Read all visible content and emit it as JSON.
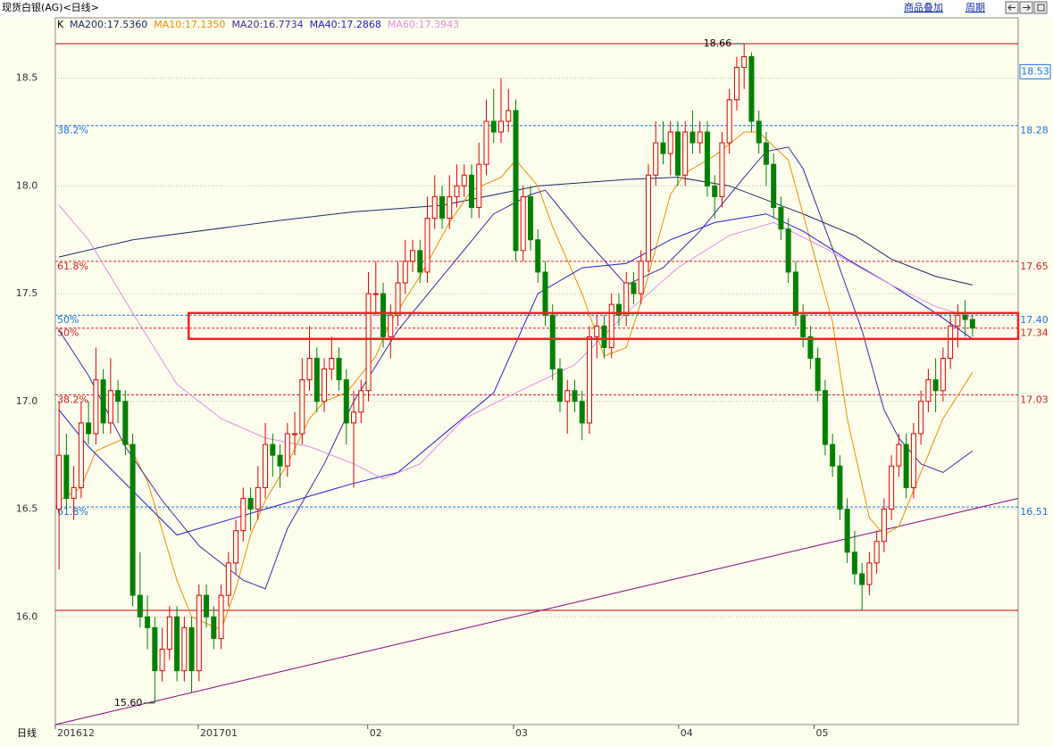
{
  "header": {
    "title": "现货白银(AG)<日线>",
    "buttons": [
      "商品叠加",
      "周期"
    ]
  },
  "chart_data": {
    "type": "candlestick",
    "legend_prefix": "K",
    "footer_label": "日线",
    "up_color": "#e00000",
    "down_color": "#008000",
    "ylim": [
      15.5,
      18.78
    ],
    "yticks": [
      16.5,
      17.5,
      18.5,
      {
        "value": 16,
        "label": "16.0"
      },
      {
        "value": 17,
        "label": "17.0"
      },
      {
        "value": 18,
        "label": "18.0"
      }
    ],
    "xlim": [
      -0.5,
      130.2
    ],
    "xticks": [
      {
        "value": -0.5,
        "label": "201612"
      },
      {
        "value": 18.9,
        "label": "201701"
      },
      {
        "value": 41.9,
        "label": "02"
      },
      {
        "value": 61.7,
        "label": "03"
      },
      {
        "value": 84.1,
        "label": "04"
      },
      {
        "value": 102.5,
        "label": "05"
      }
    ],
    "candles": [
      [
        16.5,
        17,
        16.22,
        16.75
      ],
      [
        16.75,
        16.85,
        16.5,
        16.55
      ],
      [
        16.55,
        16.7,
        16.45,
        16.6
      ],
      [
        16.6,
        17,
        16.55,
        16.9
      ],
      [
        16.9,
        17,
        16.8,
        16.85
      ],
      [
        16.85,
        17.25,
        16.8,
        17.1
      ],
      [
        17.1,
        17.15,
        16.85,
        16.9
      ],
      [
        16.9,
        17.2,
        16.85,
        17.05
      ],
      [
        17.05,
        17.1,
        16.9,
        17
      ],
      [
        17,
        17.05,
        16.75,
        16.8
      ],
      [
        16.8,
        16.85,
        16.05,
        16.1
      ],
      [
        16.1,
        16.3,
        15.95,
        16
      ],
      [
        16,
        16.1,
        15.85,
        15.95
      ],
      [
        15.95,
        16,
        15.6,
        15.75
      ],
      [
        15.75,
        15.95,
        15.7,
        15.85
      ],
      [
        15.85,
        16.05,
        15.8,
        16
      ],
      [
        16,
        16.05,
        15.7,
        15.75
      ],
      [
        15.75,
        16,
        15.7,
        15.95
      ],
      [
        15.95,
        16,
        15.65,
        15.75
      ],
      [
        15.75,
        16.15,
        15.7,
        16.1
      ],
      [
        16.1,
        16.15,
        15.95,
        16
      ],
      [
        16,
        16.05,
        15.85,
        15.9
      ],
      [
        15.9,
        16.15,
        15.85,
        16.1
      ],
      [
        16.1,
        16.3,
        16.05,
        16.25
      ],
      [
        16.25,
        16.45,
        16.2,
        16.4
      ],
      [
        16.4,
        16.6,
        16.35,
        16.55
      ],
      [
        16.55,
        16.6,
        16.4,
        16.5
      ],
      [
        16.5,
        16.7,
        16.45,
        16.6
      ],
      [
        16.6,
        16.9,
        16.55,
        16.8
      ],
      [
        16.8,
        16.85,
        16.65,
        16.75
      ],
      [
        16.75,
        16.8,
        16.6,
        16.7
      ],
      [
        16.7,
        16.9,
        16.65,
        16.85
      ],
      [
        16.85,
        16.95,
        16.75,
        16.85
      ],
      [
        16.85,
        17.2,
        16.8,
        17.1
      ],
      [
        17.1,
        17.35,
        17.05,
        17.2
      ],
      [
        17.2,
        17.25,
        16.95,
        17
      ],
      [
        17,
        17.2,
        16.95,
        17.15
      ],
      [
        17.15,
        17.3,
        17.1,
        17.2
      ],
      [
        17.2,
        17.25,
        17.05,
        17.1
      ],
      [
        17.1,
        17.15,
        16.8,
        16.9
      ],
      [
        16.9,
        17.05,
        16.6,
        16.95
      ],
      [
        16.95,
        17.1,
        16.9,
        17.05
      ],
      [
        17.05,
        17.6,
        17,
        17.5
      ],
      [
        17.5,
        17.65,
        17.4,
        17.5
      ],
      [
        17.5,
        17.55,
        17.25,
        17.3
      ],
      [
        17.3,
        17.45,
        17.2,
        17.4
      ],
      [
        17.4,
        17.65,
        17.35,
        17.55
      ],
      [
        17.55,
        17.75,
        17.5,
        17.65
      ],
      [
        17.65,
        17.75,
        17.6,
        17.7
      ],
      [
        17.7,
        17.75,
        17.55,
        17.6
      ],
      [
        17.6,
        17.95,
        17.55,
        17.85
      ],
      [
        17.85,
        18.05,
        17.8,
        17.95
      ],
      [
        17.95,
        18,
        17.8,
        17.85
      ],
      [
        17.85,
        18.05,
        17.8,
        17.95
      ],
      [
        17.95,
        18.1,
        17.9,
        18
      ],
      [
        18,
        18.1,
        17.95,
        18.05
      ],
      [
        18.05,
        18.1,
        17.85,
        17.9
      ],
      [
        17.9,
        18.2,
        17.85,
        18.1
      ],
      [
        18.1,
        18.4,
        18.05,
        18.3
      ],
      [
        18.3,
        18.45,
        18.2,
        18.25
      ],
      [
        18.25,
        18.5,
        18.2,
        18.3
      ],
      [
        18.3,
        18.45,
        18.25,
        18.35
      ],
      [
        18.35,
        18.4,
        17.65,
        17.7
      ],
      [
        17.7,
        18,
        17.65,
        17.95
      ],
      [
        17.95,
        18,
        17.7,
        17.75
      ],
      [
        17.75,
        17.8,
        17.55,
        17.6
      ],
      [
        17.6,
        17.65,
        17.35,
        17.4
      ],
      [
        17.4,
        17.45,
        17.1,
        17.15
      ],
      [
        17.15,
        17.2,
        16.95,
        17
      ],
      [
        17,
        17.1,
        16.85,
        17.05
      ],
      [
        17.05,
        17.1,
        16.95,
        17
      ],
      [
        17,
        17.05,
        16.82,
        16.9
      ],
      [
        16.9,
        17.35,
        16.85,
        17.3
      ],
      [
        17.3,
        17.4,
        17.2,
        17.35
      ],
      [
        17.35,
        17.4,
        17.2,
        17.25
      ],
      [
        17.25,
        17.5,
        17.2,
        17.45
      ],
      [
        17.45,
        17.5,
        17.35,
        17.4
      ],
      [
        17.4,
        17.6,
        17.35,
        17.55
      ],
      [
        17.55,
        17.6,
        17.45,
        17.5
      ],
      [
        17.5,
        17.7,
        17.45,
        17.65
      ],
      [
        17.65,
        18.1,
        17.6,
        18.05
      ],
      [
        18.05,
        18.3,
        18,
        18.2
      ],
      [
        18.2,
        18.3,
        18.1,
        18.15
      ],
      [
        18.15,
        18.3,
        18.05,
        18.25
      ],
      [
        18.25,
        18.3,
        18,
        18.05
      ],
      [
        18.05,
        18.3,
        18,
        18.25
      ],
      [
        18.25,
        18.35,
        18.15,
        18.2
      ],
      [
        18.2,
        18.3,
        18.15,
        18.25
      ],
      [
        18.25,
        18.3,
        17.95,
        18
      ],
      [
        18,
        18.05,
        17.85,
        17.95
      ],
      [
        17.95,
        18.25,
        17.9,
        18.2
      ],
      [
        18.2,
        18.45,
        18.15,
        18.4
      ],
      [
        18.4,
        18.6,
        18.35,
        18.55
      ],
      [
        18.55,
        18.66,
        18.45,
        18.6
      ],
      [
        18.6,
        18.62,
        18.25,
        18.3
      ],
      [
        18.3,
        18.35,
        18.15,
        18.2
      ],
      [
        18.2,
        18.25,
        18,
        18.1
      ],
      [
        18.1,
        18.15,
        17.85,
        17.9
      ],
      [
        17.9,
        17.95,
        17.75,
        17.8
      ],
      [
        17.8,
        17.85,
        17.55,
        17.6
      ],
      [
        17.6,
        17.65,
        17.35,
        17.4
      ],
      [
        17.4,
        17.45,
        17.25,
        17.3
      ],
      [
        17.3,
        17.35,
        17.15,
        17.2
      ],
      [
        17.2,
        17.25,
        17,
        17.05
      ],
      [
        17.05,
        17.1,
        16.75,
        16.8
      ],
      [
        16.8,
        16.85,
        16.65,
        16.7
      ],
      [
        16.7,
        16.75,
        16.45,
        16.5
      ],
      [
        16.5,
        16.55,
        16.25,
        16.3
      ],
      [
        16.3,
        16.4,
        16.15,
        16.2
      ],
      [
        16.2,
        16.25,
        16.03,
        16.15
      ],
      [
        16.15,
        16.3,
        16.1,
        16.25
      ],
      [
        16.25,
        16.4,
        16.2,
        16.35
      ],
      [
        16.35,
        16.55,
        16.3,
        16.5
      ],
      [
        16.5,
        16.75,
        16.45,
        16.7
      ],
      [
        16.7,
        16.85,
        16.65,
        16.8
      ],
      [
        16.8,
        16.85,
        16.55,
        16.6
      ],
      [
        16.6,
        16.9,
        16.55,
        16.85
      ],
      [
        16.85,
        17.05,
        16.8,
        17
      ],
      [
        17,
        17.15,
        16.95,
        17.1
      ],
      [
        17.1,
        17.2,
        16.95,
        17.05
      ],
      [
        17.05,
        17.25,
        17,
        17.2
      ],
      [
        17.2,
        17.4,
        17.15,
        17.35
      ],
      [
        17.35,
        17.45,
        17.25,
        17.4
      ],
      [
        17.4,
        17.47,
        17.3,
        17.38
      ],
      [
        17.38,
        17.4,
        17.3,
        17.34
      ]
    ],
    "series": [
      {
        "name": "MA200:17.5360",
        "color": "#1a2a66",
        "x": [
          0,
          10,
          30,
          40,
          52,
          65,
          77,
          84,
          91,
          101,
          108,
          113,
          119,
          124
        ],
        "values": [
          17.67,
          17.75,
          17.84,
          17.88,
          17.91,
          18,
          18.03,
          18.04,
          18,
          17.87,
          17.77,
          17.66,
          17.58,
          17.54
        ]
      },
      {
        "name": "MA10:17.1350",
        "color": "#f08c00",
        "x": [
          0,
          3,
          5,
          9,
          12,
          16,
          18,
          22,
          24,
          26,
          28,
          31,
          34,
          36,
          39,
          43,
          45,
          49,
          53,
          56,
          60,
          62,
          65,
          67,
          71,
          74,
          77,
          79,
          83,
          85,
          89,
          93,
          95,
          99,
          101,
          105,
          107,
          110,
          112,
          114,
          117,
          120,
          124
        ],
        "values": [
          16.54,
          16.6,
          16.77,
          16.83,
          16.63,
          16.17,
          16,
          15.94,
          16.13,
          16.38,
          16.54,
          16.71,
          16.92,
          17,
          17.04,
          17.21,
          17.37,
          17.58,
          17.83,
          17.98,
          18.04,
          18.12,
          18,
          17.81,
          17.5,
          17.21,
          17.25,
          17.46,
          17.96,
          18.06,
          18.14,
          18.25,
          18.25,
          18.12,
          17.87,
          17.37,
          16.92,
          16.46,
          16.38,
          16.42,
          16.67,
          16.92,
          17.135
        ]
      },
      {
        "name": "MA20:16.7734",
        "color": "#3a2a9a",
        "x": [
          0,
          4,
          9,
          14,
          19,
          25,
          28,
          31,
          36,
          40,
          46,
          53,
          59,
          64,
          66,
          71,
          77,
          82,
          87,
          93,
          96,
          99,
          101,
          105,
          109,
          112,
          114,
          117,
          120,
          124
        ],
        "values": [
          17.33,
          17.12,
          16.79,
          16.54,
          16.33,
          16.17,
          16.13,
          16.41,
          16.71,
          17,
          17.33,
          17.62,
          17.87,
          17.96,
          17.98,
          17.77,
          17.54,
          17.62,
          17.79,
          18.04,
          18.16,
          18.18,
          18.08,
          17.71,
          17.33,
          16.96,
          16.83,
          16.71,
          16.67,
          16.77
        ]
      },
      {
        "name": "MA40:17.2868",
        "color": "#2020c8",
        "x": [
          0,
          4,
          16,
          28,
          40,
          46,
          53,
          59,
          65,
          71,
          77,
          83,
          89,
          96,
          101,
          107,
          113,
          119,
          124
        ],
        "values": [
          16.96,
          16.79,
          16.38,
          16.5,
          16.62,
          16.67,
          16.87,
          17.04,
          17.5,
          17.62,
          17.64,
          17.75,
          17.83,
          17.87,
          17.79,
          17.66,
          17.54,
          17.41,
          17.29
        ]
      },
      {
        "name": "MA60:17.3943",
        "color": "#e48ae4",
        "x": [
          0,
          4,
          10,
          16,
          22,
          28,
          34,
          40,
          44,
          49,
          55,
          62,
          70,
          77,
          84,
          91,
          97,
          104,
          113,
          119,
          124
        ],
        "values": [
          17.91,
          17.75,
          17.41,
          17.08,
          16.92,
          16.83,
          16.79,
          16.71,
          16.64,
          16.71,
          16.92,
          17.04,
          17.17,
          17.41,
          17.62,
          17.77,
          17.83,
          17.71,
          17.54,
          17.44,
          17.39
        ]
      }
    ],
    "levels": [
      {
        "value": 18.28,
        "label": "38.2%",
        "value_label": "18.28",
        "color": "#1e6fd9"
      },
      {
        "value": 17.65,
        "label": "61.8%",
        "value_label": "17.65",
        "color": "#d02020"
      },
      {
        "value": 17.4,
        "label": "50%",
        "value_label": "17.40",
        "color": "#1e6fd9"
      },
      {
        "value": 17.34,
        "label": "50%",
        "value_label": "17.34",
        "color": "#d02020"
      },
      {
        "value": 17.03,
        "label": "38.2%",
        "value_label": "17.03",
        "color": "#d02020"
      },
      {
        "value": 16.51,
        "label": "61.8%",
        "value_label": "16.51",
        "color": "#1e6fd9"
      }
    ],
    "hlines": [
      18.66,
      16.03
    ],
    "annotations": [
      {
        "value": 18.66,
        "label": "18.66",
        "index": 93
      },
      {
        "value": 15.6,
        "label": "15.60",
        "index": 13
      }
    ],
    "price_marker": {
      "value": 18.53
    },
    "trendline": {
      "x": [
        -0.5,
        130.2
      ],
      "y": [
        15.5,
        16.55
      ],
      "color": "#800080"
    },
    "box": {
      "x": [
        17.6,
        130.2
      ],
      "y": [
        17.29,
        17.41
      ],
      "color": "#ff2020"
    }
  }
}
